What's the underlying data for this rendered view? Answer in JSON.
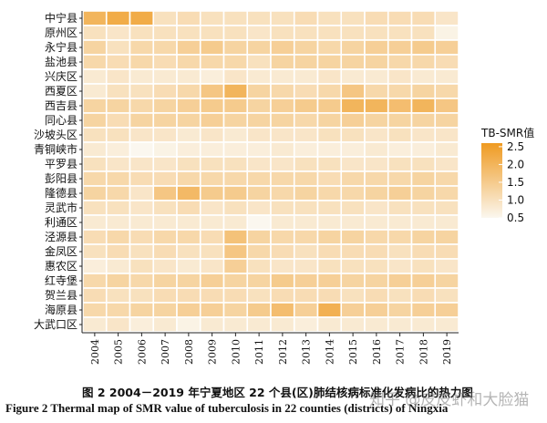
{
  "chart_data": {
    "type": "heatmap",
    "rows": [
      "中宁县",
      "原州区",
      "永宁县",
      "盐池县",
      "兴庆区",
      "西夏区",
      "西吉县",
      "同心县",
      "沙坡头区",
      "青铜峡市",
      "平罗县",
      "彭阳县",
      "隆德县",
      "灵武市",
      "利通区",
      "泾源县",
      "金凤区",
      "惠农区",
      "红寺堡",
      "贺兰县",
      "海原县",
      "大武口区"
    ],
    "columns": [
      "2004",
      "2005",
      "2006",
      "2007",
      "2008",
      "2009",
      "2010",
      "2011",
      "2012",
      "2013",
      "2014",
      "2015",
      "2016",
      "2017",
      "2018",
      "2019"
    ],
    "values": [
      [
        2.0,
        2.2,
        2.2,
        1.0,
        1.1,
        1.0,
        1.0,
        1.0,
        1.0,
        1.1,
        1.0,
        1.0,
        1.1,
        1.1,
        1.1,
        0.9
      ],
      [
        1.0,
        0.9,
        1.0,
        1.0,
        1.0,
        1.0,
        1.0,
        0.9,
        1.0,
        1.0,
        1.0,
        1.0,
        1.0,
        1.0,
        1.0,
        0.6
      ],
      [
        1.3,
        1.0,
        1.2,
        1.2,
        1.4,
        1.5,
        1.3,
        1.3,
        1.4,
        1.3,
        1.2,
        1.3,
        1.4,
        1.4,
        1.5,
        1.4
      ],
      [
        1.2,
        1.1,
        1.2,
        1.1,
        1.2,
        1.2,
        1.2,
        1.0,
        1.3,
        1.3,
        1.3,
        1.3,
        1.3,
        1.2,
        1.2,
        1.1
      ],
      [
        0.8,
        0.9,
        0.8,
        0.8,
        0.8,
        0.7,
        0.9,
        0.8,
        0.8,
        0.8,
        0.9,
        0.8,
        0.8,
        0.9,
        0.8,
        0.8
      ],
      [
        0.8,
        1.0,
        1.0,
        1.1,
        1.2,
        1.6,
        2.0,
        1.3,
        1.2,
        1.1,
        1.2,
        1.6,
        1.2,
        1.2,
        1.3,
        1.2
      ],
      [
        1.3,
        1.3,
        1.2,
        1.3,
        1.4,
        1.5,
        1.5,
        1.3,
        1.4,
        1.5,
        1.5,
        2.0,
        2.0,
        1.8,
        2.0,
        1.6
      ],
      [
        1.3,
        1.1,
        1.3,
        1.3,
        1.3,
        1.4,
        1.3,
        1.3,
        1.3,
        1.2,
        1.3,
        1.4,
        1.3,
        1.3,
        1.3,
        1.3
      ],
      [
        1.0,
        1.0,
        0.9,
        0.9,
        0.8,
        0.9,
        0.8,
        0.9,
        0.9,
        0.9,
        1.0,
        1.0,
        0.9,
        1.0,
        0.9,
        0.9
      ],
      [
        0.8,
        0.7,
        0.5,
        0.6,
        0.7,
        0.7,
        0.7,
        0.7,
        0.8,
        0.7,
        0.7,
        0.7,
        0.8,
        0.7,
        0.7,
        0.8
      ],
      [
        1.0,
        0.9,
        0.9,
        0.9,
        1.0,
        1.0,
        1.0,
        0.9,
        0.9,
        1.0,
        1.0,
        0.9,
        0.9,
        1.0,
        1.0,
        0.9
      ],
      [
        1.2,
        1.2,
        1.1,
        1.1,
        1.2,
        1.2,
        1.2,
        1.2,
        1.2,
        1.2,
        1.1,
        1.2,
        1.2,
        1.2,
        1.3,
        1.2
      ],
      [
        1.3,
        1.2,
        0.9,
        1.6,
        1.9,
        1.5,
        1.5,
        1.3,
        1.2,
        1.3,
        1.2,
        1.2,
        1.3,
        1.4,
        1.3,
        1.2
      ],
      [
        1.0,
        1.0,
        0.9,
        1.0,
        1.1,
        0.9,
        1.0,
        0.9,
        1.0,
        1.0,
        1.0,
        1.0,
        0.9,
        1.0,
        1.0,
        1.0
      ],
      [
        0.8,
        0.8,
        0.8,
        0.8,
        0.8,
        0.8,
        0.8,
        0.5,
        0.8,
        0.8,
        0.8,
        0.8,
        0.8,
        0.8,
        0.8,
        0.8
      ],
      [
        1.1,
        1.2,
        1.1,
        1.2,
        1.2,
        1.1,
        1.7,
        1.3,
        1.2,
        1.2,
        1.3,
        1.3,
        1.2,
        1.2,
        1.3,
        1.3
      ],
      [
        1.0,
        1.1,
        1.0,
        1.1,
        1.0,
        1.0,
        1.6,
        1.2,
        1.1,
        1.0,
        1.1,
        1.1,
        1.1,
        1.0,
        1.1,
        1.1
      ],
      [
        0.7,
        0.8,
        1.0,
        0.9,
        0.8,
        0.9,
        1.4,
        1.0,
        0.9,
        0.9,
        1.0,
        1.0,
        1.0,
        0.9,
        1.0,
        0.9
      ],
      [
        1.2,
        1.3,
        1.2,
        1.3,
        1.3,
        1.4,
        1.3,
        1.3,
        1.5,
        1.4,
        1.4,
        1.3,
        1.3,
        1.4,
        1.4,
        1.3
      ],
      [
        1.1,
        1.0,
        1.0,
        1.1,
        1.1,
        1.1,
        1.1,
        1.0,
        1.1,
        1.1,
        1.1,
        1.0,
        1.1,
        1.0,
        1.1,
        1.0
      ],
      [
        1.2,
        1.2,
        1.3,
        1.3,
        1.4,
        1.4,
        1.3,
        1.5,
        1.8,
        1.4,
        2.1,
        1.4,
        1.4,
        1.3,
        1.4,
        1.4
      ],
      [
        0.8,
        0.9,
        0.7,
        0.8,
        0.6,
        0.8,
        0.8,
        0.8,
        0.8,
        0.7,
        0.8,
        0.8,
        0.8,
        0.8,
        0.8,
        0.8
      ]
    ],
    "legend": {
      "title": "TB-SMR值",
      "ticks": [
        2.5,
        2.0,
        1.5,
        1.0,
        0.5
      ],
      "tick_labels": [
        "2.5",
        "2.0",
        "1.5",
        "1.0",
        "0.5"
      ],
      "range": [
        0.5,
        2.6
      ],
      "color_low": "#fbf7ef",
      "color_high": "#ef9a21",
      "placement": "right"
    },
    "grid": true,
    "title": "",
    "xlabel": "",
    "ylabel": ""
  },
  "caption": {
    "chinese": "图 2    2004－2019 年宁夏地区 22 个县(区)肺结核病标准化发病比的热力图",
    "english": "Figure 2    Thermal map of SMR value of tuberculosis in 22 counties (districts) of Ningxia"
  },
  "watermark": "知乎 @皮皮虾和大脸猫",
  "colors": {
    "cell_border": "#ffffff",
    "axis": "#222222"
  }
}
